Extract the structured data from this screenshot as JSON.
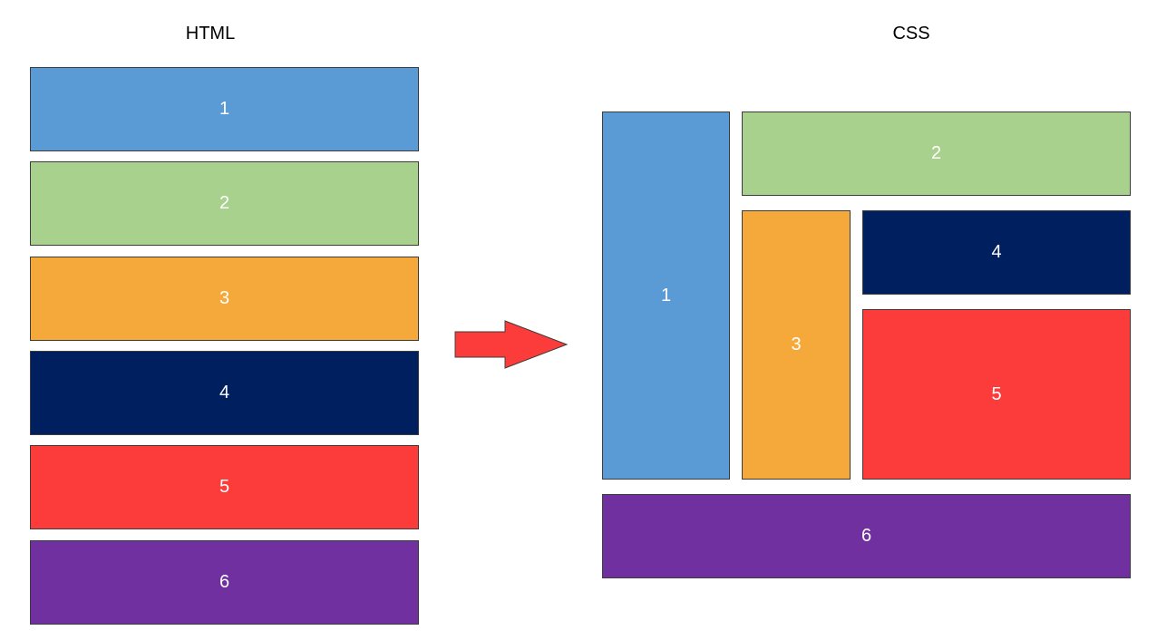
{
  "headings": {
    "html": "HTML",
    "css": "CSS"
  },
  "colors": {
    "box1": "#5B9BD5",
    "box2": "#A9D18E",
    "box3": "#F6A93B",
    "box4": "#001F5F",
    "box5": "#FC3C3A",
    "box6": "#7030A0",
    "arrow": "#FC3C3A",
    "border": "#3C3C3C"
  },
  "html_boxes": [
    {
      "label": "1"
    },
    {
      "label": "2"
    },
    {
      "label": "3"
    },
    {
      "label": "4"
    },
    {
      "label": "5"
    },
    {
      "label": "6"
    }
  ],
  "css_boxes": [
    {
      "label": "1"
    },
    {
      "label": "2"
    },
    {
      "label": "3"
    },
    {
      "label": "4"
    },
    {
      "label": "5"
    },
    {
      "label": "6"
    }
  ],
  "arrow_icon": "right-arrow-icon"
}
